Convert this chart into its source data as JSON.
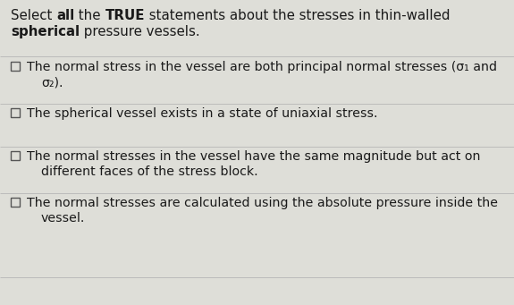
{
  "background_color": "#deded8",
  "text_color": "#1a1a1a",
  "checkbox_color": "#555555",
  "divider_color": "#bbbbbb",
  "divider_linewidth": 0.7,
  "checkbox_size": 10,
  "font_size_title": 10.8,
  "font_size_option": 10.2,
  "fig_width": 5.75,
  "fig_height": 3.41,
  "dpi": 100,
  "title_line1_parts": [
    {
      "text": "Select ",
      "bold": false
    },
    {
      "text": "all",
      "bold": true
    },
    {
      "text": " the ",
      "bold": false
    },
    {
      "text": "TRUE",
      "bold": true
    },
    {
      "text": " statements about the stresses in thin-walled",
      "bold": false
    }
  ],
  "title_line2_parts": [
    {
      "text": "spherical",
      "bold": true
    },
    {
      "text": " pressure vessels.",
      "bold": false
    }
  ],
  "options": [
    {
      "lines": [
        "The normal stress in the vessel are both principal normal stresses (σ₁ and",
        "σ₂)."
      ]
    },
    {
      "lines": [
        "The spherical vessel exists in a state of uniaxial stress."
      ]
    },
    {
      "lines": [
        "The normal stresses in the vessel have the same magnitude but act on",
        "different faces of the stress block."
      ]
    },
    {
      "lines": [
        "The normal stresses are calculated using the absolute pressure inside the",
        "vessel."
      ]
    }
  ]
}
